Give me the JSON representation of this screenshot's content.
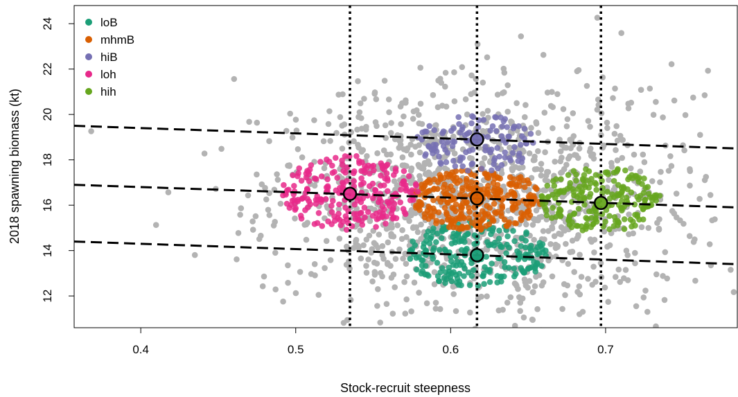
{
  "chart_data": {
    "type": "scatter",
    "xlabel": "Stock-recruit steepness",
    "ylabel": "2018 spawning biomass (kt)",
    "xlim": [
      0.357,
      0.785
    ],
    "ylim": [
      10.6,
      24.8
    ],
    "x_ticks": [
      0.4,
      0.5,
      0.6,
      0.7
    ],
    "y_ticks": [
      12,
      14,
      16,
      18,
      20,
      22,
      24
    ],
    "x_tick_labels": [
      "0.4",
      "0.5",
      "0.6",
      "0.7"
    ],
    "y_tick_labels": [
      "12",
      "14",
      "16",
      "18",
      "20",
      "22",
      "24"
    ],
    "grid": false,
    "legend_position": "top-left",
    "background_points": {
      "color": "#b3b3b3",
      "count": 1300,
      "x_mean": 0.615,
      "x_sd": 0.065,
      "y_mean": 16.3,
      "y_sd": 2.4
    },
    "series": [
      {
        "name": "loB",
        "color": "#1b9e77",
        "center": [
          0.617,
          13.8
        ],
        "x_half_range": 0.045,
        "y_range": [
          12.4,
          15.3
        ],
        "count": 230
      },
      {
        "name": "mhmB",
        "color": "#d95f02",
        "center": [
          0.617,
          16.3
        ],
        "x_half_range": 0.042,
        "y_range": [
          14.9,
          17.6
        ],
        "count": 300
      },
      {
        "name": "hiB",
        "color": "#7570b3",
        "center": [
          0.617,
          18.9
        ],
        "x_half_range": 0.04,
        "y_range": [
          17.5,
          20.0
        ],
        "count": 120
      },
      {
        "name": "loh",
        "color": "#e7298a",
        "center": [
          0.535,
          16.5
        ],
        "x_half_range": 0.044,
        "y_range": [
          14.9,
          18.2
        ],
        "count": 230
      },
      {
        "name": "hih",
        "color": "#66a61e",
        "center": [
          0.697,
          16.1
        ],
        "x_half_range": 0.04,
        "y_range": [
          14.8,
          17.7
        ],
        "count": 210
      }
    ],
    "centroids": [
      {
        "x": 0.617,
        "y": 13.8
      },
      {
        "x": 0.617,
        "y": 16.3
      },
      {
        "x": 0.617,
        "y": 18.9
      },
      {
        "x": 0.535,
        "y": 16.5
      },
      {
        "x": 0.697,
        "y": 16.1
      }
    ],
    "vertical_lines": [
      0.535,
      0.617,
      0.697
    ],
    "dashed_lines": [
      {
        "x": [
          0.357,
          0.785
        ],
        "y": [
          19.5,
          18.5
        ]
      },
      {
        "x": [
          0.357,
          0.785
        ],
        "y": [
          16.9,
          15.9
        ]
      },
      {
        "x": [
          0.357,
          0.785
        ],
        "y": [
          14.4,
          13.4
        ]
      }
    ]
  }
}
